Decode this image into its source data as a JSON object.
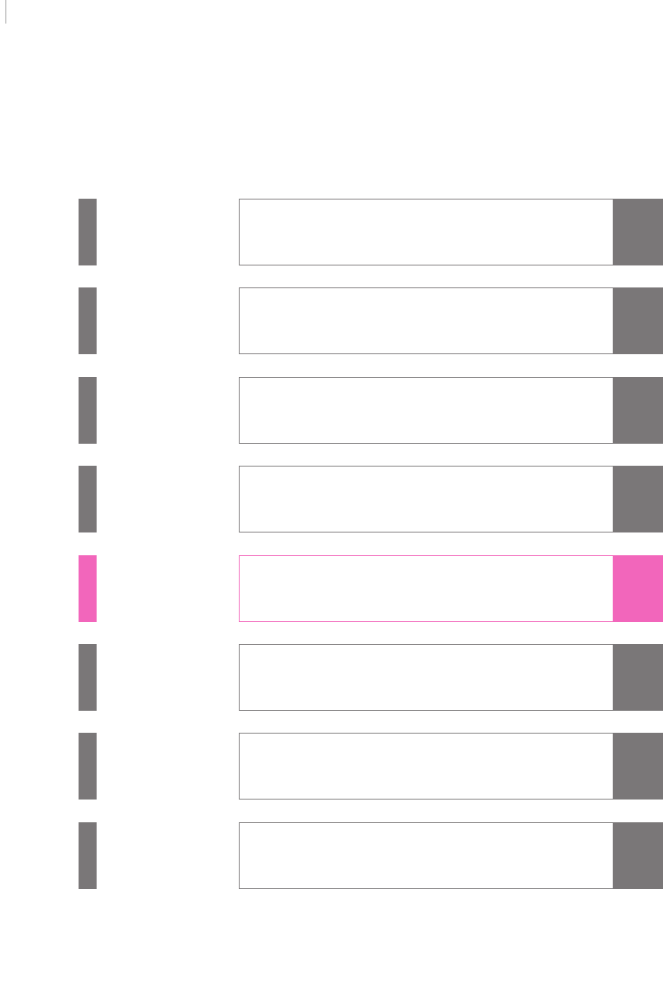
{
  "rows": [
    {
      "color": "#7a7778"
    },
    {
      "color": "#7a7778"
    },
    {
      "color": "#7a7778"
    },
    {
      "color": "#7a7778"
    },
    {
      "color": "#f266bb"
    },
    {
      "color": "#7a7778"
    },
    {
      "color": "#7a7778"
    },
    {
      "color": "#7a7778"
    }
  ]
}
